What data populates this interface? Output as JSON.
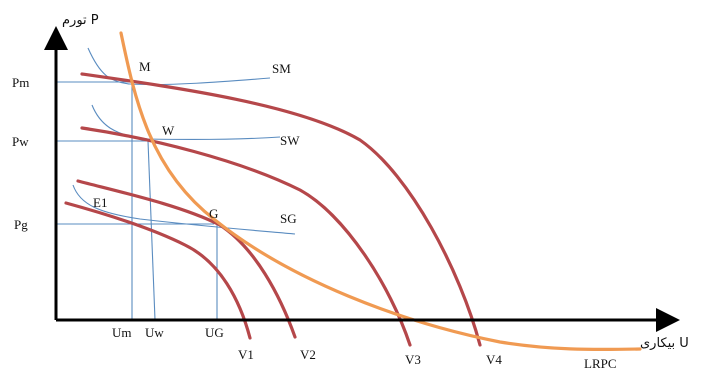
{
  "axes": {
    "y_title": "تورم P",
    "x_title": "بیکاری U"
  },
  "y_ticks": [
    "Pm",
    "Pw",
    "Pg"
  ],
  "x_ticks": [
    "Um",
    "Uw",
    "UG"
  ],
  "points": [
    "M",
    "W",
    "G",
    "E1"
  ],
  "short_run_curves": [
    "SM",
    "SW",
    "SG"
  ],
  "v_curves": [
    "V1",
    "V2",
    "V3",
    "V4"
  ],
  "long_run_curve": "LRPC",
  "colors": {
    "v_curves": "#b5474a",
    "lrpc": "#f09a52",
    "guides": "#5a8cc0",
    "axes": "#000000"
  }
}
